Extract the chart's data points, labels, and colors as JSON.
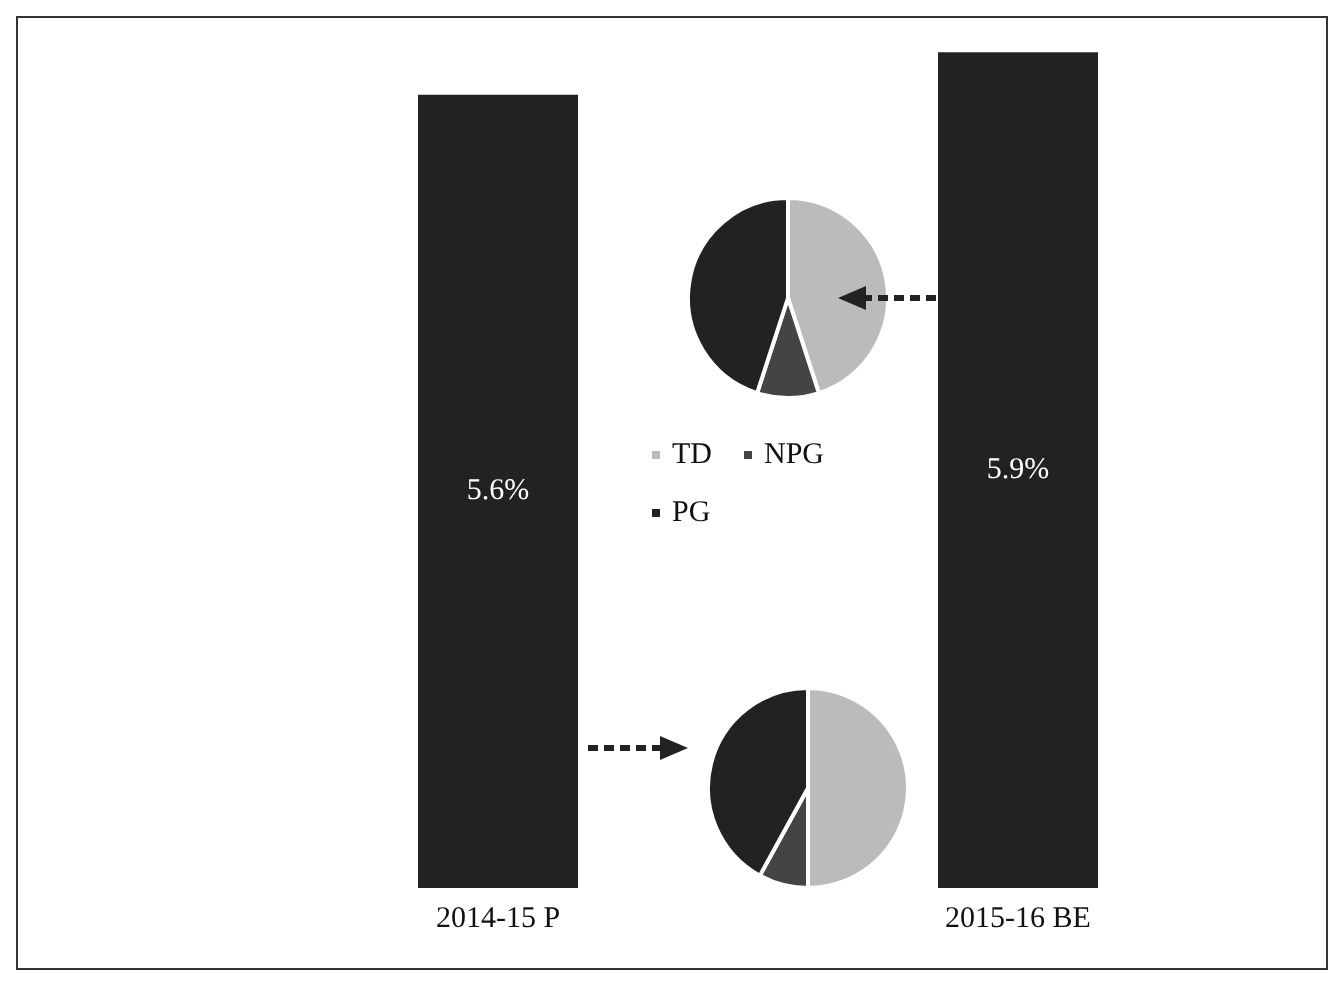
{
  "chart_data": [
    {
      "type": "bar",
      "categories": [
        "2014-15 P",
        "2015-16 BE"
      ],
      "values": [
        5.6,
        5.9
      ],
      "color": "#222222",
      "value_labels": [
        "5.6%",
        "5.9%"
      ],
      "grid": false,
      "legend": false
    },
    {
      "type": "pie",
      "categories": [
        "TD",
        "NPG",
        "PG"
      ],
      "values": [
        45,
        10,
        45
      ],
      "colors": [
        "#bbbbbb",
        "#444444",
        "#222222"
      ],
      "legend": "bottom"
    },
    {
      "type": "pie",
      "categories": [
        null,
        null,
        null
      ],
      "values": [
        50,
        8,
        42
      ],
      "colors": [
        "#bbbbbb",
        "#444444",
        "#222222"
      ],
      "legend": false
    }
  ]
}
